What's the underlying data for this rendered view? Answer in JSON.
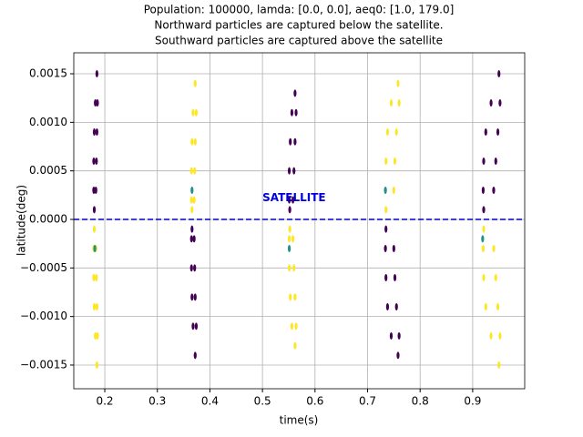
{
  "chart_data": {
    "type": "scatter",
    "title_lines": [
      "Population: 100000, lamda: [0.0, 0.0], aeq0: [1.0, 179.0]",
      "Northward particles are captured below the satellite.",
      "Southward particles are captured above the satellite"
    ],
    "x_label": "time(s)",
    "y_label": "latitude(deg)",
    "xlim": [
      0.141,
      0.999
    ],
    "ylim": [
      -0.001744,
      0.001716
    ],
    "xticks": [
      0.2,
      0.3,
      0.4,
      0.5,
      0.6,
      0.7,
      0.8,
      0.9
    ],
    "yticks": [
      {
        "value": -0.0015,
        "label": "−0.0015"
      },
      {
        "value": -0.001,
        "label": "−0.0010"
      },
      {
        "value": -0.0005,
        "label": "−0.0005"
      },
      {
        "value": 0,
        "label": "0.0000"
      },
      {
        "value": 0.0005,
        "label": "0.0005"
      },
      {
        "value": 0.001,
        "label": "0.0010"
      },
      {
        "value": 0.0015,
        "label": "0.0015"
      }
    ],
    "grid": true,
    "series": [
      {
        "color": "#440154",
        "x": [
          0.185,
          0.182,
          0.186,
          0.18,
          0.185,
          0.179,
          0.184,
          0.179,
          0.183,
          0.18,
          0.372,
          0.368,
          0.374,
          0.366,
          0.372,
          0.365,
          0.371,
          0.365,
          0.37,
          0.366,
          0.562,
          0.556,
          0.564,
          0.553,
          0.562,
          0.551,
          0.56,
          0.551,
          0.558,
          0.552,
          0.758,
          0.745,
          0.76,
          0.738,
          0.755,
          0.735,
          0.752,
          0.734,
          0.75,
          0.735,
          0.95,
          0.935,
          0.952,
          0.925,
          0.948,
          0.921,
          0.944,
          0.92,
          0.94,
          0.921
        ],
        "y": [
          0.0015,
          0.0012,
          0.0012,
          0.0009,
          0.0009,
          0.0006,
          0.0006,
          0.0003,
          0.0003,
          0.0001,
          -0.0014,
          -0.0011,
          -0.0011,
          -0.0008,
          -0.0008,
          -0.0005,
          -0.0005,
          -0.0002,
          -0.0002,
          -0.0001,
          0.0013,
          0.0011,
          0.0011,
          0.0008,
          0.0008,
          0.0005,
          0.0005,
          0.0002,
          0.0002,
          0.0001,
          -0.0014,
          -0.0012,
          -0.0012,
          -0.0009,
          -0.0009,
          -0.0006,
          -0.0006,
          -0.0003,
          -0.0003,
          -0.0001,
          0.0015,
          0.0012,
          0.0012,
          0.0009,
          0.0009,
          0.0006,
          0.0006,
          0.0003,
          0.0003,
          0.0001
        ]
      },
      {
        "color": "#fde725",
        "x": [
          0.185,
          0.182,
          0.186,
          0.18,
          0.185,
          0.179,
          0.184,
          0.179,
          0.183,
          0.18,
          0.372,
          0.368,
          0.374,
          0.366,
          0.372,
          0.365,
          0.371,
          0.365,
          0.37,
          0.366,
          0.562,
          0.556,
          0.564,
          0.553,
          0.562,
          0.551,
          0.56,
          0.551,
          0.558,
          0.552,
          0.758,
          0.745,
          0.76,
          0.738,
          0.755,
          0.735,
          0.752,
          0.734,
          0.75,
          0.735,
          0.95,
          0.935,
          0.952,
          0.925,
          0.948,
          0.921,
          0.944,
          0.92,
          0.94,
          0.921
        ],
        "y": [
          -0.0015,
          -0.0012,
          -0.0012,
          -0.0009,
          -0.0009,
          -0.0006,
          -0.0006,
          -0.0003,
          -0.0003,
          -0.0001,
          0.0014,
          0.0011,
          0.0011,
          0.0008,
          0.0008,
          0.0005,
          0.0005,
          0.0002,
          0.0002,
          0.0001,
          -0.0013,
          -0.0011,
          -0.0011,
          -0.0008,
          -0.0008,
          -0.0005,
          -0.0005,
          -0.0002,
          -0.0002,
          -0.0001,
          0.0014,
          0.0012,
          0.0012,
          0.0009,
          0.0009,
          0.0006,
          0.0006,
          0.0003,
          0.0003,
          0.0001,
          -0.0015,
          -0.0012,
          -0.0012,
          -0.0009,
          -0.0009,
          -0.0006,
          -0.0006,
          -0.0003,
          -0.0003,
          -0.0001
        ]
      },
      {
        "color": "#21918c",
        "x": [
          0.181,
          0.366,
          0.551,
          0.734,
          0.919
        ],
        "y": [
          -0.0003,
          0.0003,
          -0.0003,
          0.0003,
          -0.0002
        ]
      }
    ],
    "reference_line": {
      "y": 0,
      "color": "#0000cc"
    },
    "annotation": {
      "text": "SATELLITE",
      "x": 0.5,
      "y": 0.0002,
      "color": "#0000dd"
    }
  }
}
